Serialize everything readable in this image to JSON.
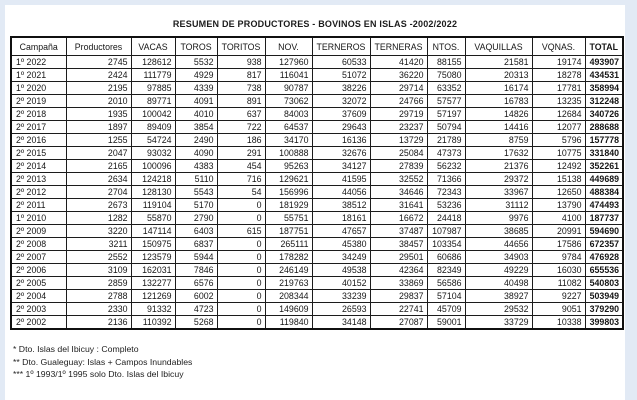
{
  "title": "RESUMEN DE PRODUCTORES - BOVINOS EN ISLAS -2002/2022",
  "table": {
    "columns": [
      "Campaña",
      "Productores",
      "VACAS",
      "TOROS",
      "TORITOS",
      "NOV.",
      "TERNEROS",
      "TERNERAS",
      "NTOS.",
      "VAQUILLAS",
      "VQNAS.",
      "TOTAL"
    ],
    "rows": [
      [
        "1º 2022",
        2745,
        128612,
        5532,
        938,
        127960,
        60533,
        41420,
        88155,
        21581,
        19174,
        493907
      ],
      [
        "1º 2021",
        2424,
        111779,
        4929,
        817,
        116041,
        51072,
        36220,
        75080,
        20313,
        18278,
        434531
      ],
      [
        "1º 2020",
        2195,
        97885,
        4339,
        738,
        90787,
        38226,
        29714,
        63352,
        16174,
        17781,
        358994
      ],
      [
        "2º 2019",
        2010,
        89771,
        4091,
        891,
        73062,
        32072,
        24766,
        57577,
        16783,
        13235,
        312248
      ],
      [
        "2º 2018",
        1935,
        100042,
        4010,
        637,
        84003,
        37609,
        29719,
        57197,
        14826,
        12684,
        340726
      ],
      [
        "2º 2017",
        1897,
        89409,
        3854,
        722,
        64537,
        29643,
        23237,
        50794,
        14416,
        12077,
        288688
      ],
      [
        "2º 2016",
        1255,
        54724,
        2490,
        186,
        34170,
        16136,
        13729,
        21789,
        8759,
        5796,
        157778
      ],
      [
        "2º 2015",
        2047,
        93032,
        4090,
        291,
        100888,
        32676,
        25084,
        47373,
        17632,
        10775,
        331840
      ],
      [
        "2º 2014",
        2165,
        100096,
        4383,
        454,
        95263,
        34127,
        27839,
        56232,
        21376,
        12492,
        352261
      ],
      [
        "2º 2013",
        2634,
        124218,
        5110,
        716,
        129621,
        41595,
        32552,
        71366,
        29372,
        15138,
        449689
      ],
      [
        "2º 2012",
        2704,
        128130,
        5543,
        54,
        156996,
        44056,
        34646,
        72343,
        33967,
        12650,
        488384
      ],
      [
        "2º 2011",
        2673,
        119104,
        5170,
        0,
        181929,
        38512,
        31641,
        53236,
        31112,
        13790,
        474493
      ],
      [
        "1º 2010",
        1282,
        55870,
        2790,
        0,
        55751,
        18161,
        16672,
        24418,
        9976,
        4100,
        187737
      ],
      [
        "2º 2009",
        3220,
        147114,
        6403,
        615,
        187751,
        47657,
        37487,
        107987,
        38685,
        20991,
        594690
      ],
      [
        "2º 2008",
        3211,
        150975,
        6837,
        0,
        265111,
        45380,
        38457,
        103354,
        44656,
        17586,
        672357
      ],
      [
        "2º 2007",
        2552,
        123579,
        5944,
        0,
        178282,
        34249,
        29501,
        60686,
        34903,
        9784,
        476928
      ],
      [
        "2º 2006",
        3109,
        162031,
        7846,
        0,
        246149,
        49538,
        42364,
        82349,
        49229,
        16030,
        655536
      ],
      [
        "2º 2005",
        2859,
        132277,
        6576,
        0,
        219763,
        40152,
        33869,
        56586,
        40498,
        11082,
        540803
      ],
      [
        "2º 2004",
        2788,
        121269,
        6002,
        0,
        208344,
        33239,
        29837,
        57104,
        38927,
        9227,
        503949
      ],
      [
        "2º 2003",
        2330,
        91332,
        4723,
        0,
        149609,
        26593,
        22741,
        45709,
        29532,
        9051,
        379290
      ],
      [
        "2º 2002",
        2136,
        110392,
        5268,
        0,
        119840,
        34148,
        27087,
        59001,
        33729,
        10338,
        399803
      ]
    ]
  },
  "footnotes": [
    "* Dto. Islas del Ibicuy : Completo",
    "** Dto. Gualeguay: Islas + Campos Inundables",
    "*** 1º 1993/1º 1995 solo Dto. Islas del Ibicuy"
  ],
  "colors": {
    "page_border": "#e2eaf5",
    "sheet_background": "#ffffff",
    "grid_line": "#1c1c1c",
    "text": "#161616"
  }
}
